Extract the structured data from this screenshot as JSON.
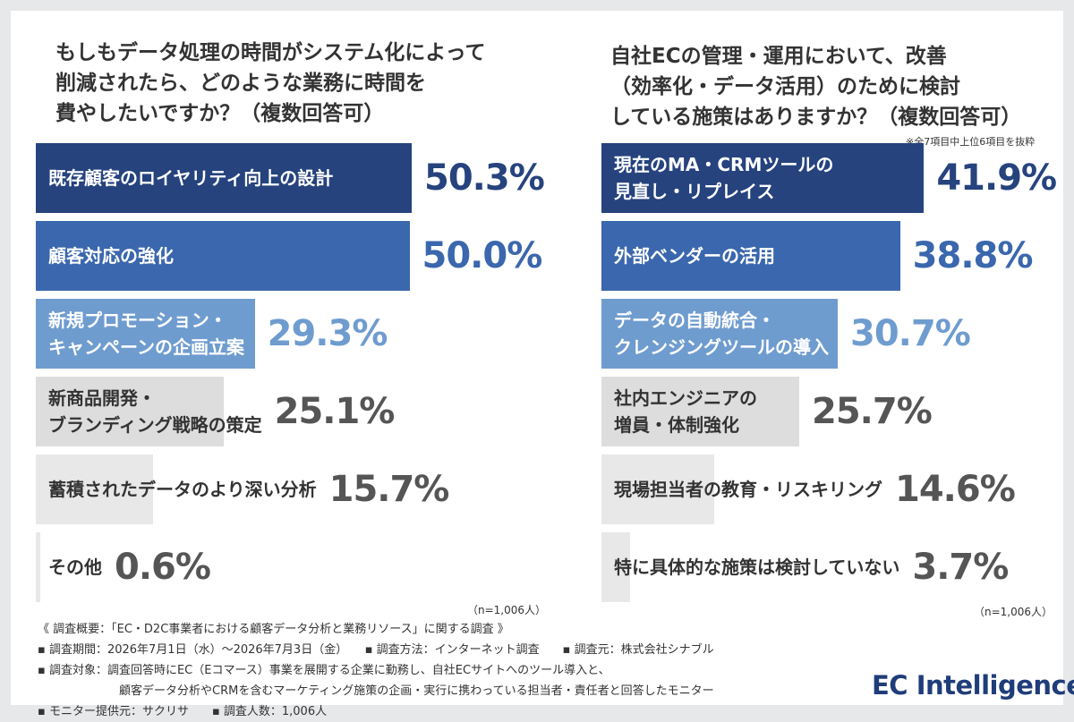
{
  "left_title_lines": [
    "もしもデータ処理の時間がシステム化によって",
    "削減されたら、どのような業務に時間を",
    "費やしたいですか？（複数回答可）"
  ],
  "right_title_lines": [
    "自社ECの管理・運用において、改善",
    "（効率化・データ活用）のために検討",
    "している施策はありますか？（複数回答可）"
  ],
  "right_note": "※全7項目中上位6項目を抜粋",
  "left_sample": "（n=1,006人）",
  "right_sample": "（n=1,006人）",
  "palette": {
    "dark": "#26437e",
    "mid": "#3a67ad",
    "light": "#6f9ccf",
    "gray": "#dddddd",
    "lightgray": "#e8e8e8"
  },
  "chart_data": [
    {
      "type": "bar",
      "orientation": "horizontal",
      "title": "もしもデータ処理の時間がシステム化によって削減されたら、どのような業務に時間を費やしたいですか？（複数回答可）",
      "unit": "%",
      "xlim": [
        0,
        60
      ],
      "categories": [
        [
          "既存顧客のロイヤリティ向上の設計"
        ],
        [
          "顧客対応の強化"
        ],
        [
          "新規プロモーション・",
          "キャンペーンの企画立案"
        ],
        [
          "新商品開発・",
          "ブランディング戦略の策定"
        ],
        [
          "蓄積されたデータのより深い分析"
        ],
        [
          "その他"
        ]
      ],
      "values": [
        50.3,
        50.0,
        29.3,
        25.1,
        15.7,
        0.6
      ],
      "labels": [
        "50.3%",
        "50.0%",
        "29.3%",
        "25.1%",
        "15.7%",
        "0.6%"
      ],
      "colors": [
        "#26437e",
        "#3a67ad",
        "#6f9ccf",
        "#dddddd",
        "#e8e8e8",
        "#e8e8e8"
      ],
      "n": "（n=1,006人）"
    },
    {
      "type": "bar",
      "orientation": "horizontal",
      "title": "自社ECの管理・運用において、改善（効率化・データ活用）のために検討している施策はありますか？（複数回答可）",
      "unit": "%",
      "xlim": [
        0,
        50
      ],
      "categories": [
        [
          "現在のMA・CRMツールの",
          "見直し・リプレイス"
        ],
        [
          "外部ベンダーの活用"
        ],
        [
          "データの自動統合・",
          "クレンジングツールの導入"
        ],
        [
          "社内エンジニアの",
          "増員・体制強化"
        ],
        [
          "現場担当者の教育・リスキリング"
        ],
        [
          "特に具体的な施策は検討していない"
        ]
      ],
      "values": [
        41.9,
        38.8,
        30.7,
        25.7,
        14.6,
        3.7
      ],
      "labels": [
        "41.9%",
        "38.8%",
        "30.7%",
        "25.7%",
        "14.6%",
        "3.7%"
      ],
      "colors": [
        "#26437e",
        "#3a67ad",
        "#6f9ccf",
        "#dddddd",
        "#e8e8e8",
        "#e8e8e8"
      ],
      "note": "※全7項目中上位6項目を抜粋",
      "n": "（n=1,006人）"
    }
  ],
  "footer_lines": [
    "《 調査概要：「EC・D2C事業者における顧客データ分析と業務リソース」に関する調査 》",
    "▪ 調査期間：2026年7月1日（水）〜2026年7月3日（金）　　▪ 調査方法：インターネット調査　　▪ 調査元：株式会社シナブル",
    "▪ 調査対象：調査回答時にEC（Eコマース）事業を展開する企業に勤務し、自社ECサイトへのツール導入と、",
    "　　　　　　　顧客データ分析やCRMを含むマーケティング施策の企画・実行に携わっている担当者・責任者と回答したモニター",
    "▪ モニター提供元：サクリサ　　▪ 調査人数：1,006人"
  ],
  "logo_text": "EC Intelligence"
}
